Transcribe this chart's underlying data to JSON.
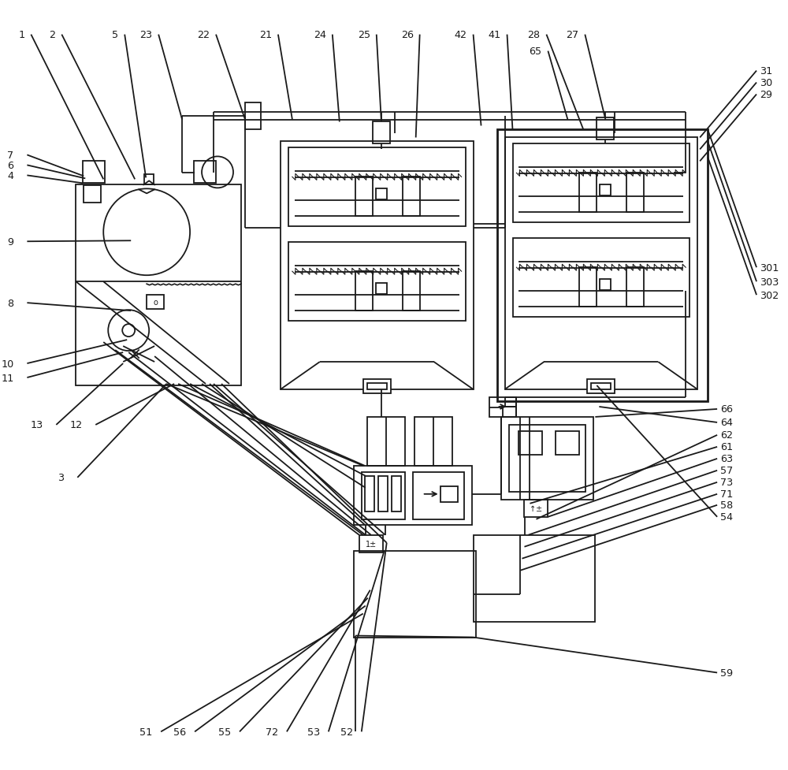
{
  "bg": "#ffffff",
  "lc": "#1a1a1a",
  "lw": 1.3
}
